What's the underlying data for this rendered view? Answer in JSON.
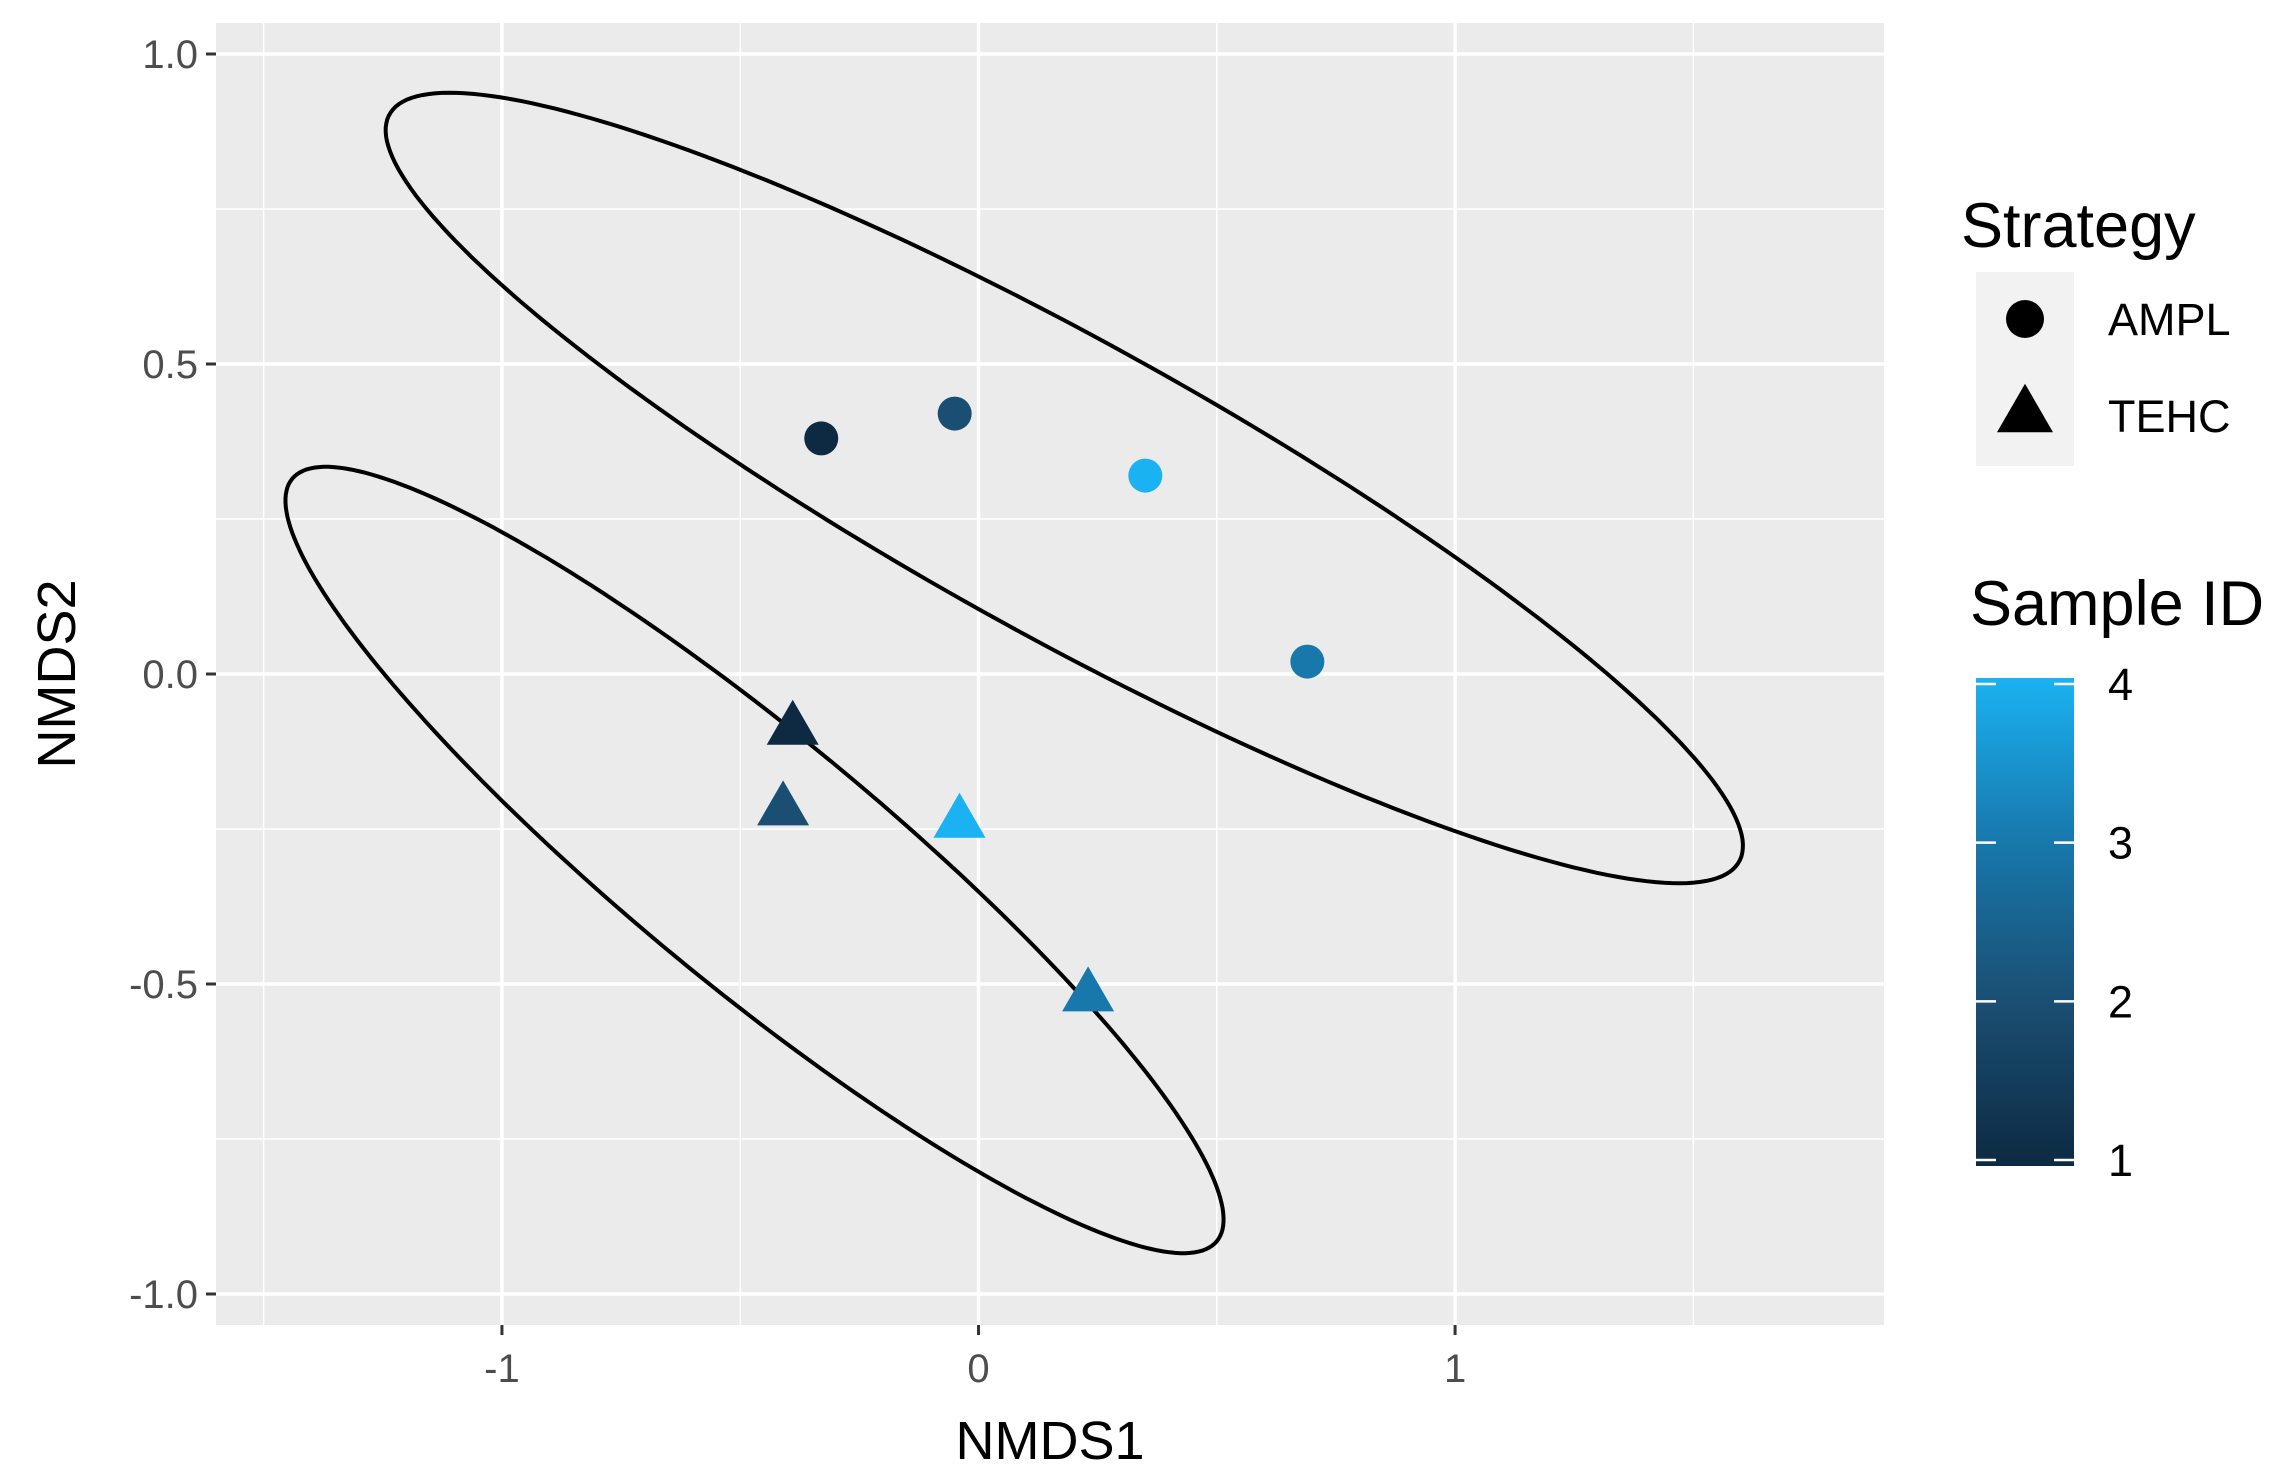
{
  "chart_data": {
    "type": "scatter",
    "xlabel": "NMDS1",
    "ylabel": "NMDS2",
    "xlim": [
      -1.6,
      1.9
    ],
    "ylim": [
      -1.05,
      1.05
    ],
    "x_ticks": [
      -1,
      0,
      1
    ],
    "x_tick_labels": [
      "-1",
      "0",
      "1"
    ],
    "y_ticks": [
      -1.0,
      -0.5,
      0.0,
      0.5,
      1.0
    ],
    "y_tick_labels": [
      "-1.0",
      "-0.5",
      "0.0",
      "0.5",
      "1.0"
    ],
    "grid": true,
    "colors": {
      "panel_background": "#ebebeb",
      "grid": "#ffffff",
      "id_1": "#0d2a42",
      "id_2": "#1a4e72",
      "id_3": "#1878ac",
      "id_4": "#1ab2f2"
    },
    "points": [
      {
        "strategy": "AMPL",
        "sample_id": 1,
        "x": -0.33,
        "y": 0.38
      },
      {
        "strategy": "AMPL",
        "sample_id": 2,
        "x": -0.05,
        "y": 0.42
      },
      {
        "strategy": "AMPL",
        "sample_id": 4,
        "x": 0.35,
        "y": 0.32
      },
      {
        "strategy": "AMPL",
        "sample_id": 3,
        "x": 0.69,
        "y": 0.02
      },
      {
        "strategy": "TEHC",
        "sample_id": 1,
        "x": -0.39,
        "y": -0.09
      },
      {
        "strategy": "TEHC",
        "sample_id": 2,
        "x": -0.41,
        "y": -0.22
      },
      {
        "strategy": "TEHC",
        "sample_id": 4,
        "x": -0.04,
        "y": -0.24
      },
      {
        "strategy": "TEHC",
        "sample_id": 3,
        "x": 0.23,
        "y": -0.52
      }
    ],
    "ellipses": [
      {
        "strategy": "AMPL",
        "center_x": 0.18,
        "center_y": 0.3,
        "semi_major": 1.54,
        "semi_minor": 0.25,
        "angle_deg": -22.7
      },
      {
        "strategy": "TEHC",
        "center_x": -0.47,
        "center_y": -0.3,
        "semi_major": 1.15,
        "semi_minor": 0.22,
        "angle_deg": -31.8
      }
    ],
    "legend": {
      "position": "right",
      "strategy_title": "Strategy",
      "strategy_items": [
        {
          "label": "AMPL",
          "shape": "circle"
        },
        {
          "label": "TEHC",
          "shape": "triangle"
        }
      ],
      "colorbar_title": "Sample ID",
      "colorbar_range": [
        1,
        4
      ],
      "colorbar_ticks": [
        1,
        2,
        3,
        4
      ],
      "colorbar_tick_labels": [
        "1",
        "2",
        "3",
        "4"
      ]
    }
  }
}
